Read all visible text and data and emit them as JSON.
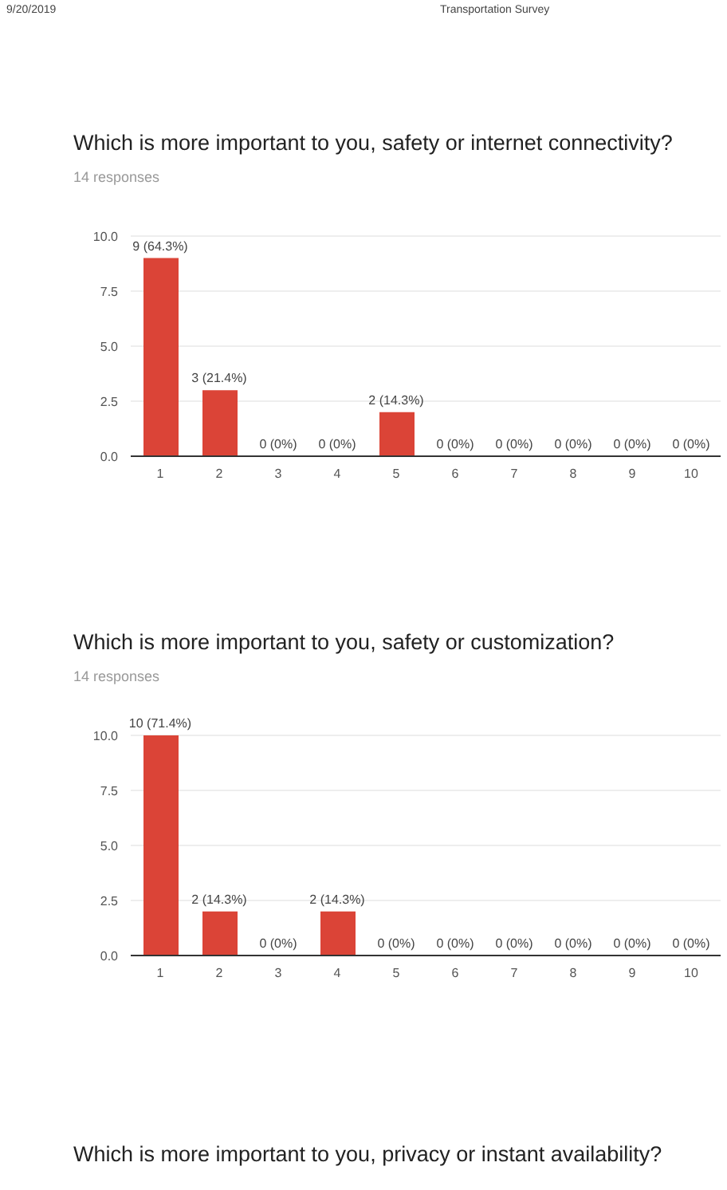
{
  "chart_data": [
    {
      "type": "bar",
      "title": "Which is more important to you, safety or internet connectivity?",
      "subtitle": "14 responses",
      "annotations": [
        "9/20/2019",
        "Transportation Survey"
      ],
      "categories": [
        "1",
        "2",
        "3",
        "4",
        "5",
        "6",
        "7",
        "8",
        "9",
        "10"
      ],
      "values": [
        9,
        3,
        0,
        0,
        2,
        0,
        0,
        0,
        0,
        0
      ],
      "value_labels": [
        "9 (64.3%)",
        "3 (21.4%)",
        "0 (0%)",
        "0 (0%)",
        "2 (14.3%)",
        "0 (0%)",
        "0 (0%)",
        "0 (0%)",
        "0 (0%)",
        "0 (0%)"
      ],
      "color": "#db4437",
      "ylim": [
        0,
        10
      ],
      "yticks": [
        {
          "value": 0,
          "label": "0.0"
        },
        {
          "value": 2.5,
          "label": "2.5"
        },
        {
          "value": 5,
          "label": "5.0"
        },
        {
          "value": 7.5,
          "label": "7.5"
        },
        {
          "value": 10,
          "label": "10.0"
        }
      ],
      "grid": "y"
    },
    {
      "type": "bar",
      "title": "Which is more important to you, safety or customization?",
      "subtitle": "14 responses",
      "annotations": [
        "Which is more important to you, privacy or instant availability?"
      ],
      "categories": [
        "1",
        "2",
        "3",
        "4",
        "5",
        "6",
        "7",
        "8",
        "9",
        "10"
      ],
      "values": [
        10,
        2,
        0,
        2,
        0,
        0,
        0,
        0,
        0,
        0
      ],
      "value_labels": [
        "10 (71.4%)",
        "2 (14.3%)",
        "0 (0%)",
        "2 (14.3%)",
        "0 (0%)",
        "0 (0%)",
        "0 (0%)",
        "0 (0%)",
        "0 (0%)",
        "0 (0%)"
      ],
      "color": "#db4437",
      "ylim": [
        0,
        10
      ],
      "yticks": [
        {
          "value": 0,
          "label": "0.0"
        },
        {
          "value": 2.5,
          "label": "2.5"
        },
        {
          "value": 5,
          "label": "5.0"
        },
        {
          "value": 7.5,
          "label": "7.5"
        },
        {
          "value": 10,
          "label": "10.0"
        }
      ],
      "grid": "y"
    }
  ]
}
